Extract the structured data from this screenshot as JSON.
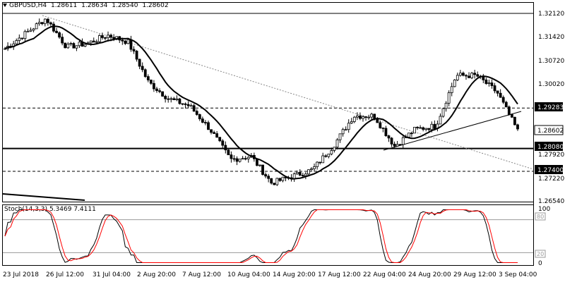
{
  "header": {
    "symbol": "GBPUSD,H4",
    "open": "1.28611",
    "high": "1.28634",
    "low": "1.28540",
    "close": "1.28602"
  },
  "stoch": {
    "label": "Stoch(14,3,3)",
    "k": "5.3469",
    "d": "7.4111",
    "levels": [
      "100",
      "80",
      "20",
      "0"
    ]
  },
  "price_axis": [
    "1.32120",
    "1.31420",
    "1.30720",
    "1.30020",
    "1.29283",
    "1.28602",
    "1.28080",
    "1.27920",
    "1.27400",
    "1.27220",
    "1.26540"
  ],
  "time_axis": [
    "23 Jul 2018",
    "26 Jul 12:00",
    "31 Jul 04:00",
    "2 Aug 20:00",
    "7 Aug 12:00",
    "10 Aug 04:00",
    "14 Aug 20:00",
    "17 Aug 12:00",
    "22 Aug 04:00",
    "24 Aug 20:00",
    "29 Aug 12:00",
    "3 Sep 04:00"
  ],
  "levels": {
    "resistance_dashed": "1.29283",
    "support_solid": "1.28080",
    "support_dashed": "1.27400",
    "current_price": "1.28602"
  },
  "colors": {
    "candle": "#000000",
    "ma": "#000000",
    "stoch_k": "#000000",
    "stoch_d": "#ff0000",
    "grid": "#999999"
  },
  "chart_data": {
    "type": "line",
    "ylim": [
      1.2654,
      1.3212
    ],
    "approx_close_path": [
      [
        "23 Jul 2018",
        1.3105
      ],
      [
        "24 Jul",
        1.315
      ],
      [
        "25 Jul",
        1.3195
      ],
      [
        "26 Jul 12:00",
        1.311
      ],
      [
        "28 Jul",
        1.312
      ],
      [
        "31 Jul 04:00",
        1.3145
      ],
      [
        "1 Aug",
        1.3125
      ],
      [
        "2 Aug 20:00",
        1.3005
      ],
      [
        "6 Aug",
        1.2955
      ],
      [
        "7 Aug 12:00",
        1.2935
      ],
      [
        "9 Aug",
        1.2865
      ],
      [
        "10 Aug 04:00",
        1.2775
      ],
      [
        "13 Aug",
        1.2785
      ],
      [
        "14 Aug 20:00",
        1.2705
      ],
      [
        "16 Aug",
        1.2725
      ],
      [
        "17 Aug 12:00",
        1.2745
      ],
      [
        "20 Aug",
        1.2815
      ],
      [
        "21 Aug",
        1.2905
      ],
      [
        "22 Aug 04:00",
        1.2905
      ],
      [
        "23 Aug",
        1.2815
      ],
      [
        "24 Aug 20:00",
        1.2865
      ],
      [
        "27 Aug",
        1.2875
      ],
      [
        "29 Aug 12:00",
        1.3025
      ],
      [
        "30 Aug",
        1.3025
      ],
      [
        "31 Aug",
        1.2975
      ],
      [
        "3 Sep 04:00",
        1.286
      ]
    ]
  }
}
